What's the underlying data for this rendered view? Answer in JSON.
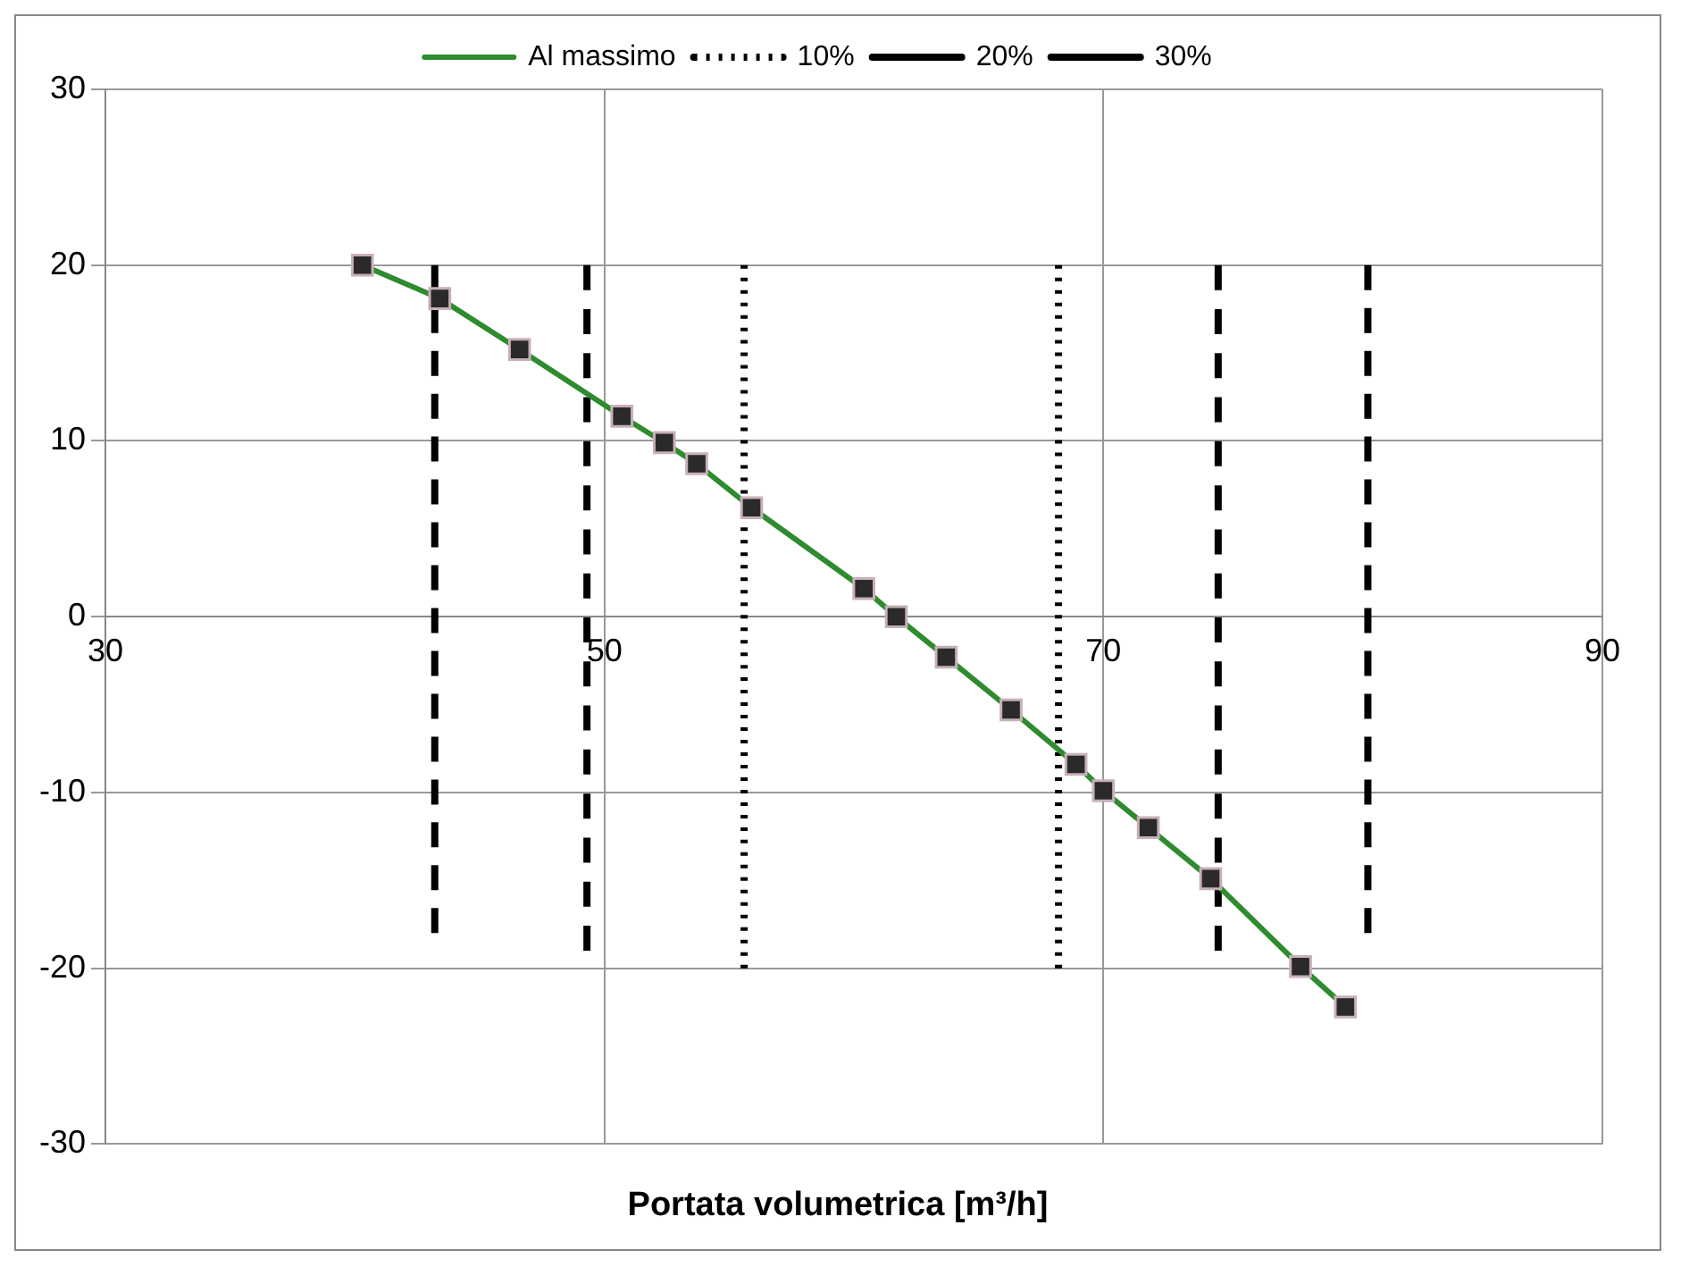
{
  "chart_data": {
    "type": "line",
    "xlabel": "Portata volumetrica [m³/h]",
    "xlim": [
      30,
      90
    ],
    "xticks": [
      30,
      50,
      70,
      90
    ],
    "ylim": [
      -30,
      30
    ],
    "yticks": [
      -30,
      -20,
      -10,
      0,
      10,
      20,
      30
    ],
    "grid": true,
    "legend": "top",
    "series": [
      {
        "name": "Al massimo",
        "color": "#2e8b2e",
        "marker": "square",
        "line_style": "solid",
        "x": [
          40.3,
          43.4,
          46.6,
          50.7,
          52.4,
          53.7,
          55.9,
          60.4,
          61.7,
          63.7,
          66.3,
          68.9,
          70.0,
          71.8,
          74.3,
          77.9,
          79.7
        ],
        "values": [
          20,
          18.1,
          15.2,
          11.4,
          9.9,
          8.7,
          6.2,
          1.6,
          0,
          -2.3,
          -5.3,
          -8.4,
          -9.9,
          -12,
          -14.9,
          -19.9,
          -22.2
        ]
      },
      {
        "name": "10%",
        "color": "#000000",
        "marker": "none",
        "line_style": "dotted",
        "x": [
          55.6,
          55.6,
          null,
          68.2,
          68.2
        ],
        "values": [
          20,
          -20,
          null,
          20,
          -20
        ]
      },
      {
        "name": "20%",
        "color": "#000000",
        "marker": "none",
        "line_style": "dashed",
        "x": [
          49.3,
          49.3,
          null,
          74.6,
          74.6
        ],
        "values": [
          20,
          -19,
          null,
          20,
          -19
        ]
      },
      {
        "name": "30%",
        "color": "#000000",
        "marker": "none",
        "line_style": "dashed",
        "x": [
          43.2,
          43.2,
          null,
          80.6,
          80.6
        ],
        "values": [
          20,
          -18,
          null,
          20,
          -18
        ]
      }
    ]
  }
}
